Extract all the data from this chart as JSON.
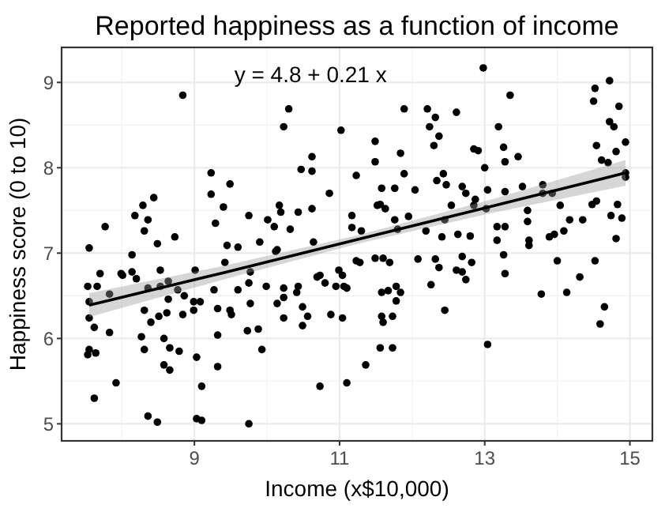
{
  "chart_data": {
    "type": "scatter",
    "title": "Reported happiness as a function of income",
    "xlabel": "Income (x$10,000)",
    "ylabel": "Happiness score (0 to 10)",
    "xlim": [
      7.17,
      15.31
    ],
    "ylim": [
      4.8,
      9.41
    ],
    "xticks": [
      9,
      11,
      13,
      15
    ],
    "yticks": [
      5,
      6,
      7,
      8,
      9
    ],
    "grid": true,
    "annotations": [
      "y = 4.8 + 0.21 x"
    ],
    "series": [
      {
        "color": "#000000",
        "marker": "circle",
        "x": [
          8.84,
          10.3,
          10.23,
          11.02,
          10.62,
          10.47,
          10.62,
          9.23,
          9.49,
          10.86,
          8.44,
          8.29,
          9.23,
          9.4,
          11.23,
          8.18,
          8.36,
          8.31,
          7.77,
          9.29,
          9.75,
          10.17,
          10.19,
          10.01,
          10.1,
          10.32,
          10.43,
          10.62,
          11.17,
          11.17,
          8.73,
          8.49,
          7.55,
          9.45,
          9.6,
          9.9,
          10.14,
          10.64,
          12.98,
          13.35,
          14.52,
          14.72,
          14.5,
          14.85,
          11.89,
          12.21,
          12.61,
          12.32,
          12.24,
          13.19,
          14.72,
          14.78,
          12.37,
          12.3,
          11.49,
          11.84,
          11.49,
          12.85,
          12.91,
          13.26,
          13.46,
          13.28,
          14.54,
          14.94,
          14.81,
          14.61,
          14.7,
          13.0,
          11.89,
          12.43,
          12.34,
          12.47,
          11.58,
          11.76,
          12.04,
          12.69,
          12.74,
          13.04,
          13.28,
          13.52,
          13.8,
          12.87,
          11.52,
          11.63,
          11.56,
          11.76,
          11.3,
          11.95,
          11.8,
          12.19,
          12.45,
          12.54,
          12.85,
          13.02,
          13.17,
          13.28,
          13.59,
          13.59,
          13.8,
          13.93,
          14.04,
          14.17,
          14.35,
          14.48,
          14.54,
          14.74,
          14.83,
          14.89,
          14.94,
          14.94,
          12.63,
          12.8,
          12.41,
          13.96,
          13.61,
          14.81,
          14.09,
          8.14,
          7.7,
          7.53,
          7.66,
          7.55,
          7.55,
          7.62,
          7.83,
          7.83,
          7.99,
          8.01,
          8.14,
          8.2,
          8.53,
          8.36,
          8.53,
          8.64,
          8.64,
          8.77,
          8.86,
          8.99,
          9.08,
          9.01,
          9.27,
          9.42,
          9.6,
          9.75,
          9.77,
          9.99,
          10.12,
          10.23,
          10.43,
          10.41,
          10.69,
          10.73,
          10.8,
          10.99,
          11.04,
          10.95,
          11.06,
          11.23,
          8.31,
          8.51,
          8.4,
          8.62,
          8.84,
          8.99,
          9.32,
          9.49,
          9.51,
          9.77,
          10.14,
          10.23,
          10.49,
          10.23,
          10.56,
          10.49,
          10.88,
          11.04,
          8.27,
          8.58,
          9.32,
          9.73,
          9.88,
          7.53,
          7.55,
          7.64,
          8.31,
          8.66,
          8.79,
          9.03,
          9.32,
          9.93,
          8.58,
          8.66,
          7.92,
          9.1,
          10.73,
          11.1,
          7.62,
          8.36,
          8.49,
          9.03,
          9.1,
          9.75,
          11.28,
          11.49,
          11.6,
          11.69,
          12.08,
          12.32,
          12.37,
          12.69,
          12.82,
          13.26,
          13.28,
          13.61,
          14.0,
          14.52,
          14.31,
          13.78,
          14.13,
          14.65,
          14.59,
          12.26,
          12.61,
          12.69,
          12.74,
          12.45,
          11.58,
          11.67,
          11.78,
          11.84,
          11.78,
          11.58,
          11.6,
          11.73,
          11.56,
          11.73,
          11.36,
          13.04,
          11.1,
          13.17,
          13.89
        ],
        "values": [
          8.85,
          8.69,
          8.48,
          8.44,
          8.13,
          7.98,
          7.96,
          7.94,
          7.81,
          7.7,
          7.65,
          7.56,
          7.69,
          7.54,
          7.91,
          7.44,
          7.39,
          7.26,
          7.31,
          7.35,
          7.44,
          7.56,
          7.48,
          7.39,
          7.31,
          7.28,
          7.48,
          7.52,
          7.44,
          7.3,
          7.19,
          7.11,
          7.06,
          7.09,
          7.07,
          7.13,
          7.04,
          7.13,
          9.17,
          8.85,
          8.93,
          9.02,
          8.78,
          8.72,
          8.69,
          8.69,
          8.65,
          8.59,
          8.48,
          8.48,
          8.54,
          8.48,
          8.37,
          8.26,
          8.31,
          8.17,
          8.07,
          8.22,
          8.2,
          8.24,
          8.13,
          8.07,
          8.26,
          8.3,
          8.19,
          8.09,
          8.06,
          8.0,
          7.93,
          7.93,
          7.85,
          7.8,
          7.76,
          7.76,
          7.74,
          7.78,
          7.7,
          7.74,
          7.72,
          7.78,
          7.8,
          7.63,
          7.56,
          7.52,
          7.57,
          7.39,
          7.26,
          7.43,
          7.28,
          7.26,
          7.39,
          7.56,
          7.56,
          7.52,
          7.31,
          7.31,
          7.5,
          7.37,
          7.7,
          7.7,
          7.56,
          7.39,
          7.39,
          7.57,
          7.61,
          7.44,
          7.57,
          7.41,
          7.94,
          7.89,
          7.22,
          7.2,
          7.19,
          7.22,
          7.15,
          7.17,
          7.26,
          6.98,
          6.76,
          6.61,
          6.61,
          6.43,
          6.24,
          6.13,
          6.07,
          6.52,
          6.76,
          6.74,
          6.78,
          6.7,
          6.8,
          6.59,
          6.61,
          6.67,
          6.46,
          6.57,
          6.5,
          6.43,
          6.43,
          6.8,
          6.57,
          6.89,
          6.57,
          6.65,
          6.78,
          6.61,
          7.02,
          6.59,
          6.61,
          6.54,
          6.72,
          6.74,
          6.65,
          6.8,
          6.74,
          6.61,
          6.61,
          6.91,
          6.33,
          6.26,
          6.19,
          6.3,
          6.28,
          6.33,
          6.35,
          6.33,
          6.28,
          6.41,
          6.41,
          6.48,
          6.37,
          6.24,
          6.26,
          6.15,
          6.28,
          6.24,
          6.02,
          6.0,
          6.04,
          6.09,
          6.11,
          5.81,
          5.87,
          5.83,
          5.87,
          5.89,
          5.85,
          5.78,
          5.67,
          5.87,
          5.69,
          5.63,
          5.48,
          5.44,
          5.44,
          5.48,
          5.3,
          5.09,
          5.02,
          5.06,
          5.04,
          5.0,
          6.89,
          6.94,
          6.94,
          6.89,
          6.93,
          6.93,
          6.83,
          6.96,
          6.89,
          6.98,
          6.76,
          7.09,
          6.91,
          6.91,
          6.72,
          6.52,
          6.54,
          6.37,
          6.17,
          6.63,
          6.8,
          6.78,
          6.69,
          6.33,
          6.54,
          6.56,
          6.61,
          6.54,
          6.44,
          6.26,
          6.19,
          6.26,
          5.89,
          5.89,
          5.69,
          5.93,
          6.59,
          7.15,
          7.19
        ]
      },
      {
        "type": "line",
        "color": "#000000",
        "x": [
          7.55,
          9.4,
          11.25,
          13.1,
          14.94
        ],
        "values": [
          6.39,
          6.77,
          7.16,
          7.55,
          7.94
        ],
        "lower": [
          6.25,
          6.69,
          7.11,
          7.47,
          7.79
        ],
        "upper": [
          6.53,
          6.85,
          7.21,
          7.63,
          8.09
        ]
      }
    ]
  }
}
